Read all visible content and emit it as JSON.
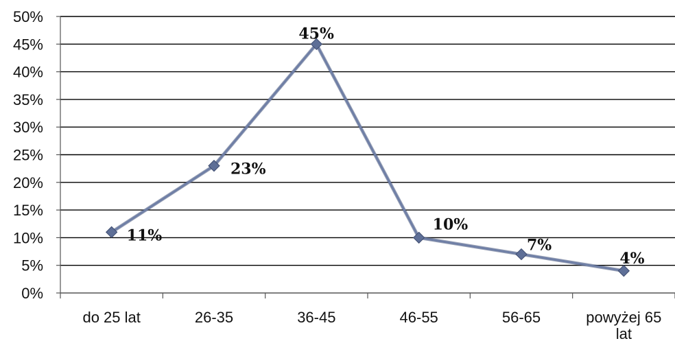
{
  "chart_data": {
    "type": "line",
    "categories": [
      "do 25 lat",
      "26-35",
      "36-45",
      "46-55",
      "56-65",
      "powyżej 65 lat"
    ],
    "category_lines": [
      [
        "do 25 lat"
      ],
      [
        "26-35"
      ],
      [
        "36-45"
      ],
      [
        "46-55"
      ],
      [
        "56-65"
      ],
      [
        "powyżej 65",
        "lat"
      ]
    ],
    "series": [
      {
        "values": [
          11,
          23,
          45,
          10,
          7,
          4
        ]
      }
    ],
    "data_labels": [
      "11%",
      "23%",
      "45%",
      "10%",
      "7%",
      "4%"
    ],
    "ylim": [
      0,
      50
    ],
    "yticks": [
      0,
      5,
      10,
      15,
      20,
      25,
      30,
      35,
      40,
      45,
      50
    ],
    "ytick_labels": [
      "0%",
      "5%",
      "10%",
      "15%",
      "20%",
      "25%",
      "30%",
      "35%",
      "40%",
      "45%",
      "50%"
    ],
    "grid": true,
    "colors": {
      "line": "#6f7fa6",
      "marker": "#5e6f97",
      "grid": "#000000",
      "axis": "#555555"
    }
  }
}
